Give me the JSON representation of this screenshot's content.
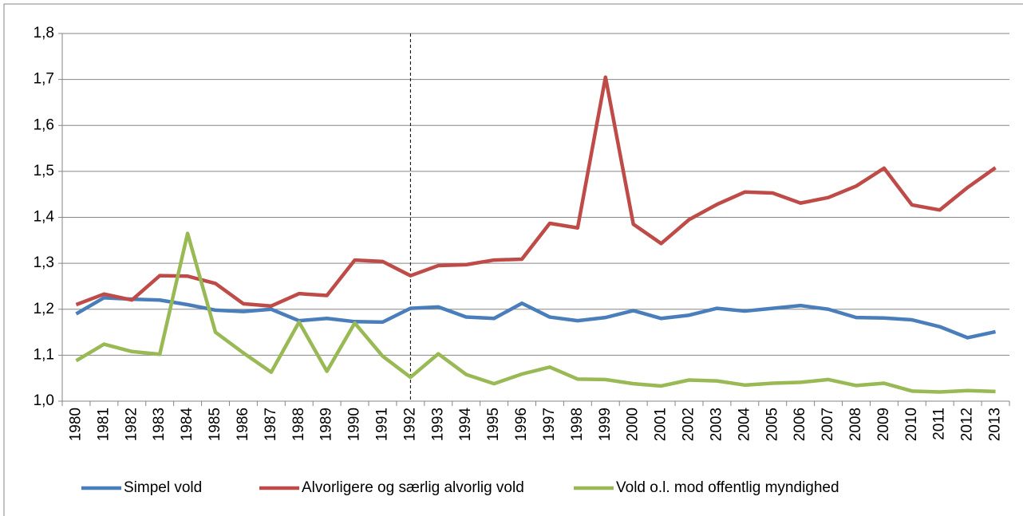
{
  "chart_data": {
    "type": "line",
    "categories": [
      "1980",
      "1981",
      "1982",
      "1983",
      "1984",
      "1985",
      "1986",
      "1987",
      "1988",
      "1989",
      "1990",
      "1991",
      "1992",
      "1993",
      "1994",
      "1995",
      "1996",
      "1997",
      "1998",
      "1999",
      "2000",
      "2001",
      "2002",
      "2003",
      "2004",
      "2005",
      "2006",
      "2007",
      "2008",
      "2009",
      "2010",
      "2011",
      "2012",
      "2013"
    ],
    "series": [
      {
        "name": "Simpel vold",
        "color": "#4a7ebb",
        "values": [
          1.19,
          1.225,
          1.222,
          1.22,
          1.21,
          1.198,
          1.195,
          1.2,
          1.175,
          1.18,
          1.173,
          1.172,
          1.202,
          1.205,
          1.183,
          1.18,
          1.213,
          1.183,
          1.175,
          1.182,
          1.197,
          1.18,
          1.187,
          1.202,
          1.196,
          1.202,
          1.208,
          1.2,
          1.182,
          1.181,
          1.177,
          1.162,
          1.138,
          1.151
        ]
      },
      {
        "name": "Alvorligere og særlig alvorlig vold",
        "color": "#be4b48",
        "values": [
          1.21,
          1.233,
          1.22,
          1.273,
          1.272,
          1.256,
          1.212,
          1.207,
          1.234,
          1.23,
          1.307,
          1.304,
          1.273,
          1.295,
          1.297,
          1.307,
          1.309,
          1.387,
          1.377,
          1.705,
          1.385,
          1.343,
          1.395,
          1.428,
          1.455,
          1.453,
          1.431,
          1.443,
          1.468,
          1.507,
          1.427,
          1.416,
          1.465,
          1.508
        ]
      },
      {
        "name": "Vold o.l. mod offentlig myndighed",
        "color": "#98b954",
        "values": [
          1.088,
          1.124,
          1.108,
          1.102,
          1.365,
          1.15,
          1.105,
          1.063,
          1.172,
          1.065,
          1.17,
          1.098,
          1.052,
          1.103,
          1.058,
          1.038,
          1.059,
          1.074,
          1.048,
          1.047,
          1.038,
          1.033,
          1.046,
          1.044,
          1.035,
          1.039,
          1.041,
          1.047,
          1.034,
          1.039,
          1.022,
          1.02,
          1.023,
          1.021
        ]
      }
    ],
    "ylim": [
      1.0,
      1.8
    ],
    "yticks": [
      {
        "value": 1.0,
        "label": "1,0"
      },
      {
        "value": 1.1,
        "label": "1,1"
      },
      {
        "value": 1.2,
        "label": "1,2"
      },
      {
        "value": 1.3,
        "label": "1,3"
      },
      {
        "value": 1.4,
        "label": "1,4"
      },
      {
        "value": 1.5,
        "label": "1,5"
      },
      {
        "value": 1.6,
        "label": "1,6"
      },
      {
        "value": 1.7,
        "label": "1,7"
      },
      {
        "value": 1.8,
        "label": "1,8"
      }
    ],
    "grid": true,
    "reference_line": "1992",
    "legend": "bottom"
  }
}
